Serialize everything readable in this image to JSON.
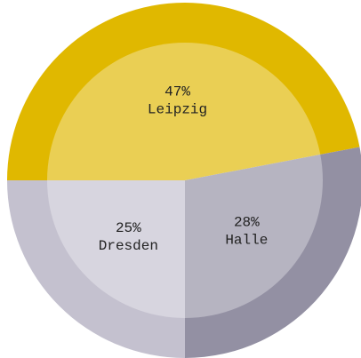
{
  "chart_data": {
    "type": "pie",
    "categories": [
      "Leipzig",
      "Halle",
      "Dresden"
    ],
    "values": [
      47,
      28,
      25
    ],
    "value_labels": [
      "47%",
      "28%",
      "25%"
    ],
    "colors": [
      "#e0b800",
      "#9390a3",
      "#c4c1cf"
    ]
  }
}
